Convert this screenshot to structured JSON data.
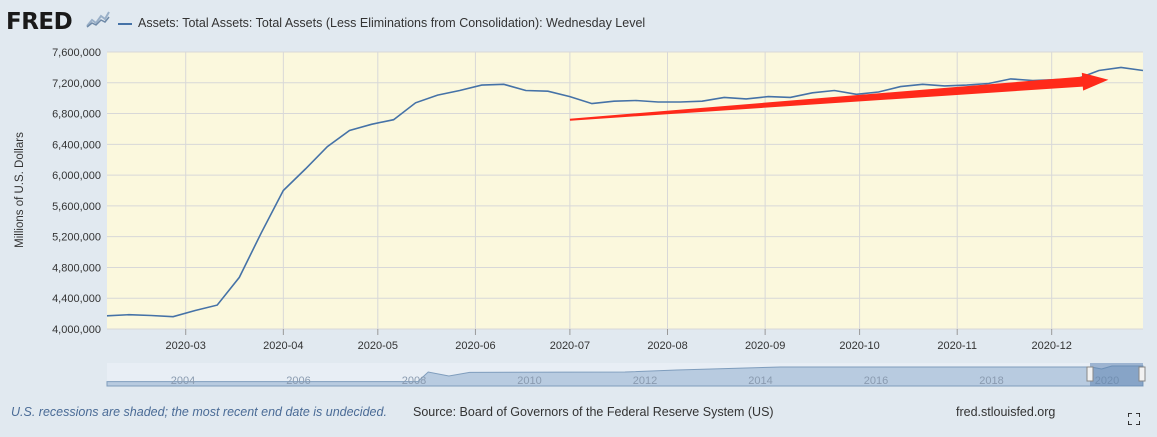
{
  "header": {
    "logo_text": "FRED",
    "logo_icon": "chart-line-icon",
    "legend_label": "Assets: Total Assets: Total Assets (Less Eliminations from Consolidation): Wednesday Level"
  },
  "chart_data": {
    "type": "line",
    "title": "",
    "xlabel": "",
    "ylabel": "Millions of U.S. Dollars",
    "ylim": [
      4000000,
      7600000
    ],
    "yticks": [
      4000000,
      4400000,
      4800000,
      5200000,
      5600000,
      6000000,
      6400000,
      6800000,
      7200000,
      7600000
    ],
    "ytick_labels": [
      "4,000,000",
      "4,400,000",
      "4,800,000",
      "5,200,000",
      "5,600,000",
      "6,000,000",
      "6,400,000",
      "6,800,000",
      "7,200,000",
      "7,600,000"
    ],
    "xlim": [
      "2020-02-05",
      "2020-12-30"
    ],
    "xticks": [
      "2020-03-01",
      "2020-04-01",
      "2020-05-01",
      "2020-06-01",
      "2020-07-01",
      "2020-08-01",
      "2020-09-01",
      "2020-10-01",
      "2020-11-01",
      "2020-12-01"
    ],
    "xtick_labels": [
      "2020-03",
      "2020-04",
      "2020-05",
      "2020-06",
      "2020-07",
      "2020-08",
      "2020-09",
      "2020-10",
      "2020-11",
      "2020-12"
    ],
    "grid": true,
    "series": [
      {
        "name": "Assets: Total Assets: Total Assets (Less Eliminations from Consolidation): Wednesday Level",
        "color": "#4572a7",
        "x": [
          "2020-02-05",
          "2020-02-12",
          "2020-02-19",
          "2020-02-26",
          "2020-03-04",
          "2020-03-11",
          "2020-03-18",
          "2020-03-25",
          "2020-04-01",
          "2020-04-08",
          "2020-04-15",
          "2020-04-22",
          "2020-04-29",
          "2020-05-06",
          "2020-05-13",
          "2020-05-20",
          "2020-05-27",
          "2020-06-03",
          "2020-06-10",
          "2020-06-17",
          "2020-06-24",
          "2020-07-01",
          "2020-07-08",
          "2020-07-15",
          "2020-07-22",
          "2020-07-29",
          "2020-08-05",
          "2020-08-12",
          "2020-08-19",
          "2020-08-26",
          "2020-09-02",
          "2020-09-09",
          "2020-09-16",
          "2020-09-23",
          "2020-09-30",
          "2020-10-07",
          "2020-10-14",
          "2020-10-21",
          "2020-10-28",
          "2020-11-04",
          "2020-11-11",
          "2020-11-18",
          "2020-11-25",
          "2020-12-02",
          "2020-12-09",
          "2020-12-16",
          "2020-12-23",
          "2020-12-30"
        ],
        "values": [
          4172000,
          4186000,
          4176000,
          4160000,
          4240000,
          4310000,
          4670000,
          5250000,
          5800000,
          6080000,
          6370000,
          6580000,
          6660000,
          6720000,
          6940000,
          7040000,
          7100000,
          7170000,
          7180000,
          7100000,
          7090000,
          7020000,
          6930000,
          6960000,
          6970000,
          6950000,
          6950000,
          6960000,
          7010000,
          6990000,
          7020000,
          7010000,
          7070000,
          7100000,
          7050000,
          7080000,
          7150000,
          7180000,
          7160000,
          7170000,
          7190000,
          7250000,
          7230000,
          7240000,
          7250000,
          7360000,
          7400000,
          7360000
        ]
      }
    ],
    "annotations": [
      {
        "type": "arrow",
        "color": "#ff2a1a",
        "from": {
          "x": "2020-07-01",
          "y": 6720000
        },
        "to": {
          "x": "2020-12-19",
          "y": 7240000
        }
      }
    ]
  },
  "navigator": {
    "year_labels": [
      "2004",
      "2006",
      "2008",
      "2010",
      "2012",
      "2014",
      "2016",
      "2018",
      "2020"
    ]
  },
  "footer": {
    "recession_note": "U.S. recessions are shaded; the most recent end date is undecided.",
    "source": "Source: Board of Governors of the Federal Reserve System (US)",
    "url": "fred.stlouisfed.org",
    "fullscreen_icon": "fullscreen-icon"
  }
}
